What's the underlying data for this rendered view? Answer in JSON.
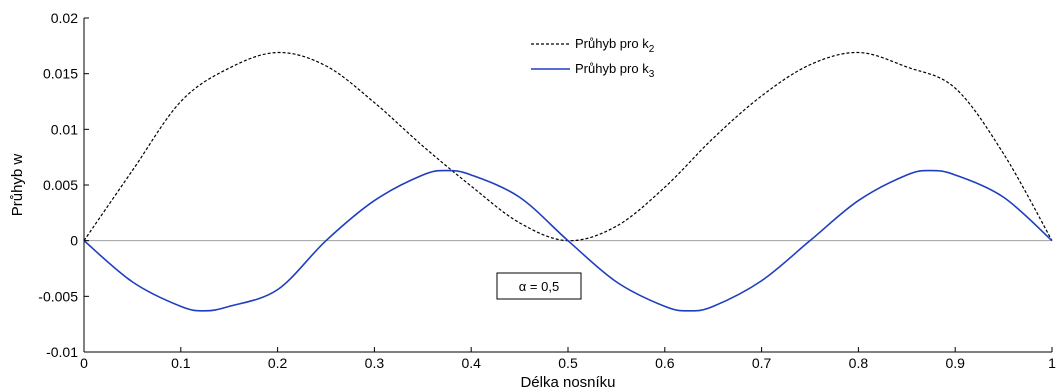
{
  "chart_data": {
    "type": "line",
    "xlabel": "Délka nosníku",
    "ylabel": "Průhyb w",
    "xlim": [
      0,
      1
    ],
    "ylim": [
      -0.01,
      0.02
    ],
    "x_ticks": [
      "0",
      "0.1",
      "0.2",
      "0.3",
      "0.4",
      "0.5",
      "0.6",
      "0.7",
      "0.8",
      "0.9",
      "1"
    ],
    "y_ticks": [
      "-0.01",
      "-0.005",
      "0",
      "0.005",
      "0.01",
      "0.015",
      "0.02"
    ],
    "grid": false,
    "legend_placement": "top-center",
    "annotation": "α = 0,5",
    "series": [
      {
        "name": "Průhyb pro k2",
        "legend_label": "Průhyb pro k",
        "legend_sub": "2",
        "color": "#000000",
        "style": "dashed",
        "x": [
          0,
          0.05,
          0.1,
          0.15,
          0.2,
          0.25,
          0.3,
          0.35,
          0.4,
          0.45,
          0.5,
          0.55,
          0.6,
          0.65,
          0.7,
          0.75,
          0.8,
          0.85,
          0.9,
          0.95,
          1
        ],
        "y": [
          0,
          0.0063,
          0.0125,
          0.0155,
          0.0169,
          0.0157,
          0.0124,
          0.0085,
          0.0049,
          0.0016,
          0.0,
          0.0013,
          0.0048,
          0.0092,
          0.013,
          0.0158,
          0.0169,
          0.0156,
          0.0137,
          0.0078,
          0
        ]
      },
      {
        "name": "Průhyb pro k3",
        "legend_label": "Průhyb pro k",
        "legend_sub": "3",
        "color": "#1f3fbf",
        "style": "solid",
        "x": [
          0,
          0.05,
          0.1,
          0.125,
          0.15,
          0.2,
          0.25,
          0.3,
          0.35,
          0.375,
          0.4,
          0.45,
          0.5,
          0.55,
          0.6,
          0.625,
          0.65,
          0.7,
          0.75,
          0.8,
          0.85,
          0.875,
          0.9,
          0.95,
          1
        ],
        "y": [
          0,
          -0.0037,
          -0.0059,
          -0.0063,
          -0.0059,
          -0.0044,
          0,
          0.0036,
          0.0059,
          0.0063,
          0.0059,
          0.0039,
          0,
          -0.0037,
          -0.0059,
          -0.0063,
          -0.0059,
          -0.0036,
          0,
          0.0036,
          0.0059,
          0.0063,
          0.0059,
          0.0039,
          0
        ]
      }
    ]
  }
}
